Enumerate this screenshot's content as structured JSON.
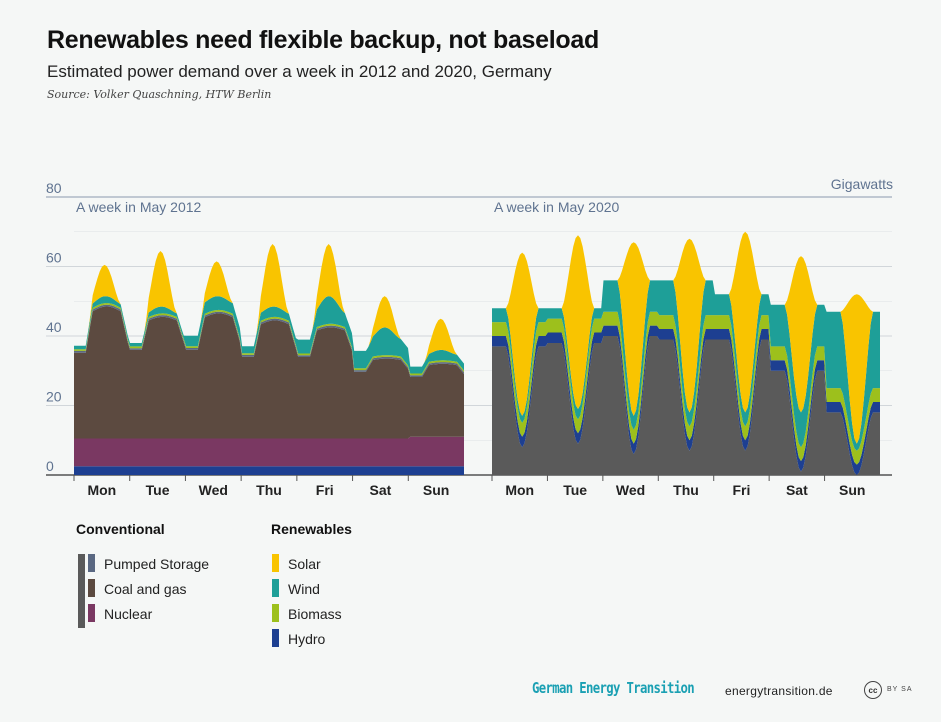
{
  "header": {
    "title": "Renewables need flexible backup, not baseload",
    "subtitle": "Estimated power demand over a week in 2012 and 2020, Germany",
    "source": "Source: Volker Quaschning, HTW Berlin"
  },
  "legend": {
    "conventional_heading": "Conventional",
    "renewables_heading": "Renewables",
    "conventional": [
      {
        "key": "pumped",
        "label": "Pumped Storage",
        "color": "#5a6882"
      },
      {
        "key": "coal",
        "label": "Coal and gas",
        "color": "#5c4a40"
      },
      {
        "key": "nuclear",
        "label": "Nuclear",
        "color": "#7a3862"
      }
    ],
    "renewables": [
      {
        "key": "solar",
        "label": "Solar",
        "color": "#f9c400"
      },
      {
        "key": "wind",
        "label": "Wind",
        "color": "#1e9f98"
      },
      {
        "key": "biomass",
        "label": "Biomass",
        "color": "#9dc01c"
      },
      {
        "key": "hydro",
        "label": "Hydro",
        "color": "#1d3f91"
      }
    ],
    "conventional_2020_color": "#5a5a5a"
  },
  "footer": {
    "brand": "German Energy Transition",
    "url": "energytransition.de",
    "cc": "cc",
    "license": "BY SA"
  },
  "chart_data": {
    "type": "area",
    "unit_label": "Gigawatts",
    "ylim": [
      0,
      80
    ],
    "y_ticks": [
      0,
      20,
      40,
      60,
      80
    ],
    "grid": true,
    "legend_position": "bottom",
    "days": [
      "Mon",
      "Tue",
      "Wed",
      "Thu",
      "Fri",
      "Sat",
      "Sun"
    ],
    "panels": [
      {
        "label": "A week in May 2012",
        "hours_per_day": 24,
        "stack_order": [
          "hydro",
          "nuclear",
          "coal",
          "pumped",
          "biomass",
          "wind",
          "solar"
        ],
        "series": [
          {
            "name": "Hydro",
            "key": "hydro",
            "color": "#1d3f91",
            "day_values": [
              2.5,
              2.5,
              2.5,
              2.5,
              2.5,
              2.5,
              2.5
            ]
          },
          {
            "name": "Nuclear",
            "key": "nuclear",
            "color": "#7a3862",
            "day_values": [
              8,
              8,
              8,
              8,
              8,
              8,
              8.5
            ]
          },
          {
            "name": "Coal and gas",
            "key": "coal",
            "color": "#5c4a40",
            "day_night_min": [
              24,
              25,
              25,
              23,
              23,
              19,
              17
            ],
            "day_peak": [
              38,
              35,
              36,
              34,
              32,
              23,
              21
            ]
          },
          {
            "name": "Pumped Storage",
            "key": "pumped",
            "color": "#5a6882",
            "day_values": [
              0.5,
              0.5,
              0.5,
              0.5,
              0.5,
              0.5,
              0.5
            ]
          },
          {
            "name": "Biomass",
            "key": "biomass",
            "color": "#9dc01c",
            "day_values": [
              0.5,
              0.5,
              0.5,
              0.5,
              0.5,
              0.5,
              0.5
            ]
          },
          {
            "name": "Wind",
            "key": "wind",
            "color": "#1e9f98",
            "day_night": [
              1,
              1,
              3,
              2,
              4,
              5,
              2
            ],
            "day_peak": [
              2,
              2,
              4,
              3,
              8,
              8,
              3
            ]
          },
          {
            "name": "Solar",
            "key": "solar",
            "color": "#f9c400",
            "day_peak": [
              9,
              16,
              10,
              18,
              15,
              9,
              9
            ]
          }
        ]
      },
      {
        "label": "A week in May 2020",
        "hours_per_day": 24,
        "stack_order": [
          "conventional",
          "hydro",
          "biomass",
          "wind",
          "solar"
        ],
        "series": [
          {
            "name": "Conventional",
            "key": "conventional",
            "color": "#5a5a5a",
            "day_night": [
              37,
              38,
              40,
              39,
              39,
              30,
              18
            ],
            "day_min": [
              8,
              9,
              6,
              7,
              7,
              1,
              0
            ]
          },
          {
            "name": "Hydro",
            "key": "hydro",
            "color": "#1d3f91",
            "day_values": [
              3,
              3,
              3,
              3,
              3,
              3,
              3
            ]
          },
          {
            "name": "Biomass",
            "key": "biomass",
            "color": "#9dc01c",
            "day_values": [
              4,
              4,
              4,
              4,
              4,
              4,
              4
            ]
          },
          {
            "name": "Wind",
            "key": "wind",
            "color": "#1e9f98",
            "day_night": [
              4,
              3,
              9,
              10,
              6,
              12,
              22
            ],
            "day_peak": [
              2,
              3,
              4,
              4,
              4,
              10,
              2
            ]
          },
          {
            "name": "Solar",
            "key": "solar",
            "color": "#f9c400",
            "day_peak": [
              47,
              50,
              50,
              50,
              52,
              45,
              43
            ]
          }
        ]
      }
    ]
  }
}
